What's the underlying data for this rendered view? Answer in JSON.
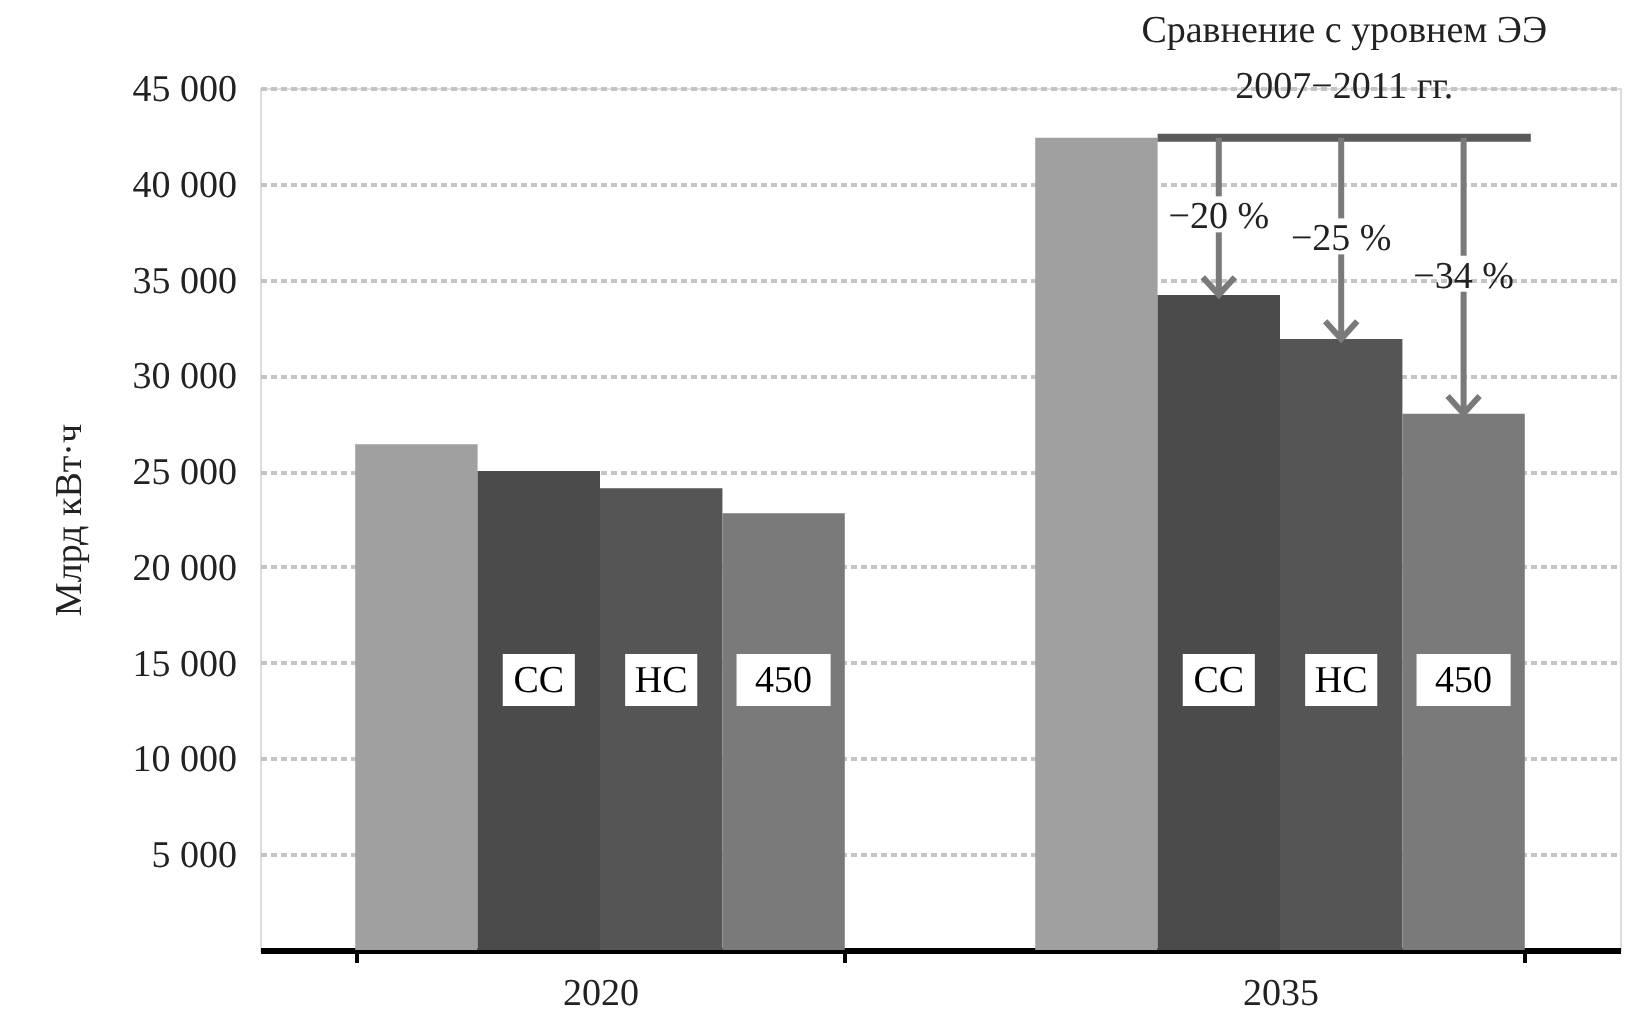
{
  "chart_data": {
    "type": "bar",
    "ylabel": "Млрд кВт·ч",
    "categories": [
      "2020",
      "2035"
    ],
    "series": [
      {
        "color": "#a0a0a0",
        "values": [
          26400,
          42400
        ]
      },
      {
        "name": "СС",
        "color": "#4b4b4b",
        "values": [
          25000,
          34200
        ]
      },
      {
        "name": "НС",
        "color": "#555555",
        "values": [
          24100,
          31900
        ]
      },
      {
        "name": "450",
        "color": "#7a7a7a",
        "values": [
          22800,
          28000
        ]
      }
    ],
    "ylim": [
      0,
      45000
    ],
    "yticks": [
      {
        "value": 5000,
        "label": "5 000"
      },
      {
        "value": 10000,
        "label": "10 000"
      },
      {
        "value": 15000,
        "label": "15 000"
      },
      {
        "value": 20000,
        "label": "20 000"
      },
      {
        "value": 25000,
        "label": "25 000"
      },
      {
        "value": 30000,
        "label": "30 000"
      },
      {
        "value": 35000,
        "label": "35 000"
      },
      {
        "value": 40000,
        "label": "40 000"
      },
      {
        "value": 45000,
        "label": "45 000"
      }
    ],
    "grid": "y",
    "legend": false,
    "ref_lines": [
      {
        "axis": "y",
        "value": 42400,
        "label": "Сравнение с уровнем ЭЭ\n2007−2011 гг.",
        "color": "#5a5a5a"
      }
    ],
    "annotations": [
      {
        "text": "−20 %",
        "y": 34200
      },
      {
        "text": "−25 %",
        "y": 31900
      },
      {
        "text": "−34 %",
        "y": 28000
      }
    ]
  }
}
